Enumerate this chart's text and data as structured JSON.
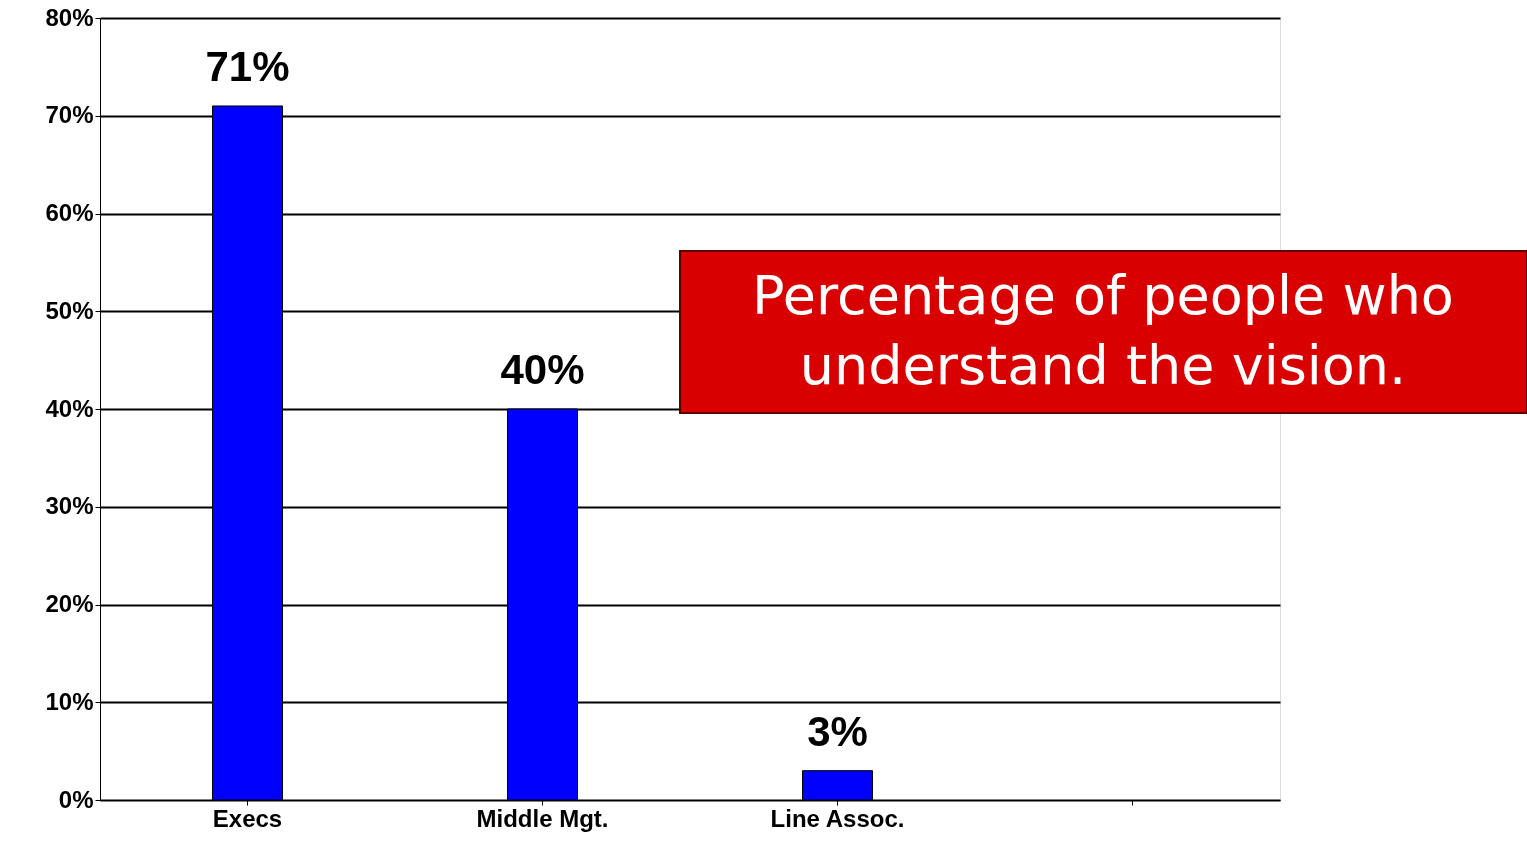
{
  "chart_data": {
    "type": "bar",
    "title": "Percentage of people who understand the vision.",
    "categories": [
      "Execs",
      "Middle Mgt.",
      "Line Assoc.",
      null
    ],
    "values": [
      71,
      40,
      3,
      null
    ],
    "value_labels": [
      "71%",
      "40%",
      "3%",
      null
    ],
    "color": "#0000ff",
    "ylim": [
      0,
      80
    ],
    "yticks": [
      {
        "value": 0,
        "label": "0%"
      },
      {
        "value": 10,
        "label": "10%"
      },
      {
        "value": 20,
        "label": "20%"
      },
      {
        "value": 30,
        "label": "30%"
      },
      {
        "value": 40,
        "label": "40%"
      },
      {
        "value": 50,
        "label": "50%"
      },
      {
        "value": 60,
        "label": "60%"
      },
      {
        "value": 70,
        "label": "70%"
      },
      {
        "value": 80,
        "label": "80%"
      }
    ],
    "grid": "y"
  }
}
